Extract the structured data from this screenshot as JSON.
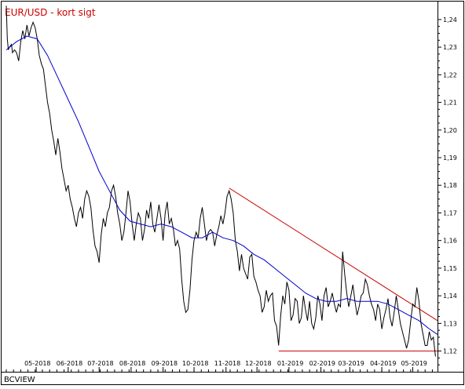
{
  "chart_data": {
    "type": "line",
    "title": "EUR/USD - kort sigt",
    "title_color": "#cc0000",
    "source_label": "BCVIEW",
    "y_ticks": [
      "1,24",
      "1,23",
      "1,22",
      "1,21",
      "1,20",
      "1,19",
      "1,18",
      "1,17",
      "1,16",
      "1,15",
      "1,14",
      "1,13",
      "1,12"
    ],
    "x_ticks": [
      {
        "label": "05-2018",
        "day": 29
      },
      {
        "label": "06-2018",
        "day": 60
      },
      {
        "label": "07-2018",
        "day": 90
      },
      {
        "label": "08-2018",
        "day": 121
      },
      {
        "label": "09-2018",
        "day": 152
      },
      {
        "label": "10-2018",
        "day": 182
      },
      {
        "label": "11-2018",
        "day": 213
      },
      {
        "label": "12-2018",
        "day": 243
      },
      {
        "label": "01-2019",
        "day": 274
      },
      {
        "label": "02-2019",
        "day": 305
      },
      {
        "label": "03-2019",
        "day": 333
      },
      {
        "label": "04-2019",
        "day": 364
      },
      {
        "label": "05-2019",
        "day": 394
      }
    ],
    "x_range_days": [
      0,
      418
    ],
    "ylim": [
      1.1125,
      1.2465
    ],
    "grid": false,
    "series": [
      {
        "color": "#000000",
        "points": [
          [
            0,
            1.245
          ],
          [
            1,
            1.233
          ],
          [
            2,
            1.229
          ],
          [
            3,
            1.23
          ],
          [
            5,
            1.231
          ],
          [
            6,
            1.228
          ],
          [
            8,
            1.229
          ],
          [
            10,
            1.228
          ],
          [
            12,
            1.225
          ],
          [
            14,
            1.232
          ],
          [
            16,
            1.236
          ],
          [
            18,
            1.233
          ],
          [
            20,
            1.238
          ],
          [
            22,
            1.234
          ],
          [
            24,
            1.237
          ],
          [
            26,
            1.239
          ],
          [
            28,
            1.237
          ],
          [
            30,
            1.233
          ],
          [
            32,
            1.227
          ],
          [
            34,
            1.224
          ],
          [
            36,
            1.222
          ],
          [
            38,
            1.216
          ],
          [
            40,
            1.21
          ],
          [
            42,
            1.206
          ],
          [
            44,
            1.2
          ],
          [
            46,
            1.196
          ],
          [
            48,
            1.191
          ],
          [
            50,
            1.197
          ],
          [
            52,
            1.192
          ],
          [
            54,
            1.186
          ],
          [
            56,
            1.182
          ],
          [
            58,
            1.178
          ],
          [
            60,
            1.18
          ],
          [
            62,
            1.175
          ],
          [
            64,
            1.172
          ],
          [
            66,
            1.168
          ],
          [
            68,
            1.165
          ],
          [
            70,
            1.17
          ],
          [
            72,
            1.172
          ],
          [
            74,
            1.168
          ],
          [
            76,
            1.175
          ],
          [
            78,
            1.178
          ],
          [
            80,
            1.176
          ],
          [
            82,
            1.172
          ],
          [
            84,
            1.164
          ],
          [
            86,
            1.158
          ],
          [
            88,
            1.156
          ],
          [
            90,
            1.152
          ],
          [
            92,
            1.162
          ],
          [
            94,
            1.168
          ],
          [
            96,
            1.165
          ],
          [
            98,
            1.17
          ],
          [
            100,
            1.172
          ],
          [
            102,
            1.178
          ],
          [
            104,
            1.18
          ],
          [
            106,
            1.176
          ],
          [
            108,
            1.17
          ],
          [
            110,
            1.166
          ],
          [
            112,
            1.16
          ],
          [
            114,
            1.163
          ],
          [
            116,
            1.17
          ],
          [
            118,
            1.178
          ],
          [
            120,
            1.174
          ],
          [
            122,
            1.166
          ],
          [
            124,
            1.16
          ],
          [
            126,
            1.166
          ],
          [
            128,
            1.17
          ],
          [
            130,
            1.168
          ],
          [
            132,
            1.16
          ],
          [
            134,
            1.164
          ],
          [
            136,
            1.171
          ],
          [
            138,
            1.168
          ],
          [
            140,
            1.174
          ],
          [
            142,
            1.166
          ],
          [
            144,
            1.163
          ],
          [
            146,
            1.168
          ],
          [
            148,
            1.173
          ],
          [
            150,
            1.168
          ],
          [
            152,
            1.16
          ],
          [
            154,
            1.17
          ],
          [
            156,
            1.174
          ],
          [
            158,
            1.166
          ],
          [
            160,
            1.168
          ],
          [
            162,
            1.164
          ],
          [
            164,
            1.158
          ],
          [
            166,
            1.16
          ],
          [
            168,
            1.157
          ],
          [
            170,
            1.146
          ],
          [
            172,
            1.138
          ],
          [
            174,
            1.134
          ],
          [
            176,
            1.135
          ],
          [
            178,
            1.142
          ],
          [
            180,
            1.153
          ],
          [
            182,
            1.16
          ],
          [
            184,
            1.163
          ],
          [
            186,
            1.161
          ],
          [
            188,
            1.168
          ],
          [
            190,
            1.172
          ],
          [
            192,
            1.166
          ],
          [
            194,
            1.16
          ],
          [
            196,
            1.163
          ],
          [
            198,
            1.164
          ],
          [
            200,
            1.163
          ],
          [
            202,
            1.158
          ],
          [
            204,
            1.162
          ],
          [
            206,
            1.165
          ],
          [
            208,
            1.169
          ],
          [
            210,
            1.166
          ],
          [
            212,
            1.17
          ],
          [
            214,
            1.176
          ],
          [
            216,
            1.178
          ],
          [
            218,
            1.175
          ],
          [
            220,
            1.17
          ],
          [
            222,
            1.16
          ],
          [
            224,
            1.156
          ],
          [
            226,
            1.149
          ],
          [
            228,
            1.155
          ],
          [
            230,
            1.15
          ],
          [
            232,
            1.148
          ],
          [
            234,
            1.146
          ],
          [
            236,
            1.154
          ],
          [
            238,
            1.155
          ],
          [
            240,
            1.147
          ],
          [
            242,
            1.145
          ],
          [
            244,
            1.142
          ],
          [
            246,
            1.14
          ],
          [
            248,
            1.134
          ],
          [
            250,
            1.136
          ],
          [
            252,
            1.142
          ],
          [
            254,
            1.138
          ],
          [
            256,
            1.14
          ],
          [
            258,
            1.141
          ],
          [
            260,
            1.131
          ],
          [
            262,
            1.129
          ],
          [
            264,
            1.122
          ],
          [
            266,
            1.133
          ],
          [
            268,
            1.14
          ],
          [
            270,
            1.137
          ],
          [
            272,
            1.145
          ],
          [
            274,
            1.142
          ],
          [
            276,
            1.131
          ],
          [
            278,
            1.133
          ],
          [
            280,
            1.139
          ],
          [
            282,
            1.138
          ],
          [
            284,
            1.13
          ],
          [
            286,
            1.132
          ],
          [
            288,
            1.14
          ],
          [
            290,
            1.135
          ],
          [
            292,
            1.131
          ],
          [
            294,
            1.138
          ],
          [
            296,
            1.13
          ],
          [
            298,
            1.128
          ],
          [
            300,
            1.132
          ],
          [
            302,
            1.14
          ],
          [
            304,
            1.137
          ],
          [
            306,
            1.131
          ],
          [
            308,
            1.14
          ],
          [
            310,
            1.143
          ],
          [
            312,
            1.136
          ],
          [
            314,
            1.138
          ],
          [
            316,
            1.141
          ],
          [
            318,
            1.137
          ],
          [
            320,
            1.134
          ],
          [
            322,
            1.137
          ],
          [
            324,
            1.136
          ],
          [
            326,
            1.156
          ],
          [
            328,
            1.148
          ],
          [
            330,
            1.141
          ],
          [
            332,
            1.136
          ],
          [
            334,
            1.14
          ],
          [
            336,
            1.144
          ],
          [
            338,
            1.138
          ],
          [
            340,
            1.133
          ],
          [
            342,
            1.136
          ],
          [
            344,
            1.14
          ],
          [
            346,
            1.141
          ],
          [
            348,
            1.146
          ],
          [
            350,
            1.144
          ],
          [
            352,
            1.14
          ],
          [
            354,
            1.137
          ],
          [
            356,
            1.135
          ],
          [
            358,
            1.131
          ],
          [
            360,
            1.137
          ],
          [
            362,
            1.135
          ],
          [
            364,
            1.128
          ],
          [
            366,
            1.132
          ],
          [
            368,
            1.135
          ],
          [
            370,
            1.139
          ],
          [
            372,
            1.132
          ],
          [
            374,
            1.129
          ],
          [
            376,
            1.134
          ],
          [
            378,
            1.14
          ],
          [
            380,
            1.135
          ],
          [
            382,
            1.13
          ],
          [
            384,
            1.127
          ],
          [
            386,
            1.124
          ],
          [
            388,
            1.121
          ],
          [
            390,
            1.124
          ],
          [
            392,
            1.131
          ],
          [
            394,
            1.137
          ],
          [
            396,
            1.136
          ],
          [
            398,
            1.143
          ],
          [
            400,
            1.138
          ],
          [
            402,
            1.13
          ],
          [
            404,
            1.126
          ],
          [
            406,
            1.122
          ],
          [
            408,
            1.122
          ],
          [
            410,
            1.127
          ],
          [
            412,
            1.124
          ],
          [
            414,
            1.125
          ],
          [
            416,
            1.118
          ]
        ]
      },
      {
        "color": "#0000cc",
        "points": [
          [
            0,
            1.229
          ],
          [
            10,
            1.232
          ],
          [
            20,
            1.234
          ],
          [
            30,
            1.233
          ],
          [
            40,
            1.227
          ],
          [
            50,
            1.219
          ],
          [
            60,
            1.211
          ],
          [
            70,
            1.203
          ],
          [
            80,
            1.194
          ],
          [
            90,
            1.185
          ],
          [
            100,
            1.178
          ],
          [
            110,
            1.171
          ],
          [
            120,
            1.167
          ],
          [
            130,
            1.166
          ],
          [
            140,
            1.165
          ],
          [
            150,
            1.166
          ],
          [
            160,
            1.165
          ],
          [
            170,
            1.163
          ],
          [
            180,
            1.161
          ],
          [
            190,
            1.161
          ],
          [
            200,
            1.163
          ],
          [
            210,
            1.161
          ],
          [
            220,
            1.16
          ],
          [
            230,
            1.158
          ],
          [
            240,
            1.155
          ],
          [
            250,
            1.153
          ],
          [
            260,
            1.15
          ],
          [
            270,
            1.147
          ],
          [
            280,
            1.144
          ],
          [
            290,
            1.141
          ],
          [
            300,
            1.139
          ],
          [
            310,
            1.138
          ],
          [
            320,
            1.138
          ],
          [
            330,
            1.139
          ],
          [
            340,
            1.138
          ],
          [
            350,
            1.138
          ],
          [
            360,
            1.138
          ],
          [
            370,
            1.137
          ],
          [
            380,
            1.135
          ],
          [
            390,
            1.133
          ],
          [
            400,
            1.131
          ],
          [
            410,
            1.128
          ],
          [
            418,
            1.126
          ]
        ]
      }
    ],
    "trend_lines": [
      {
        "color": "#cc0000",
        "start": [
          216,
          1.179
        ],
        "end": [
          418,
          1.131
        ]
      },
      {
        "color": "#cc0000",
        "start": [
          264,
          1.12
        ],
        "end": [
          418,
          1.12
        ]
      }
    ]
  }
}
